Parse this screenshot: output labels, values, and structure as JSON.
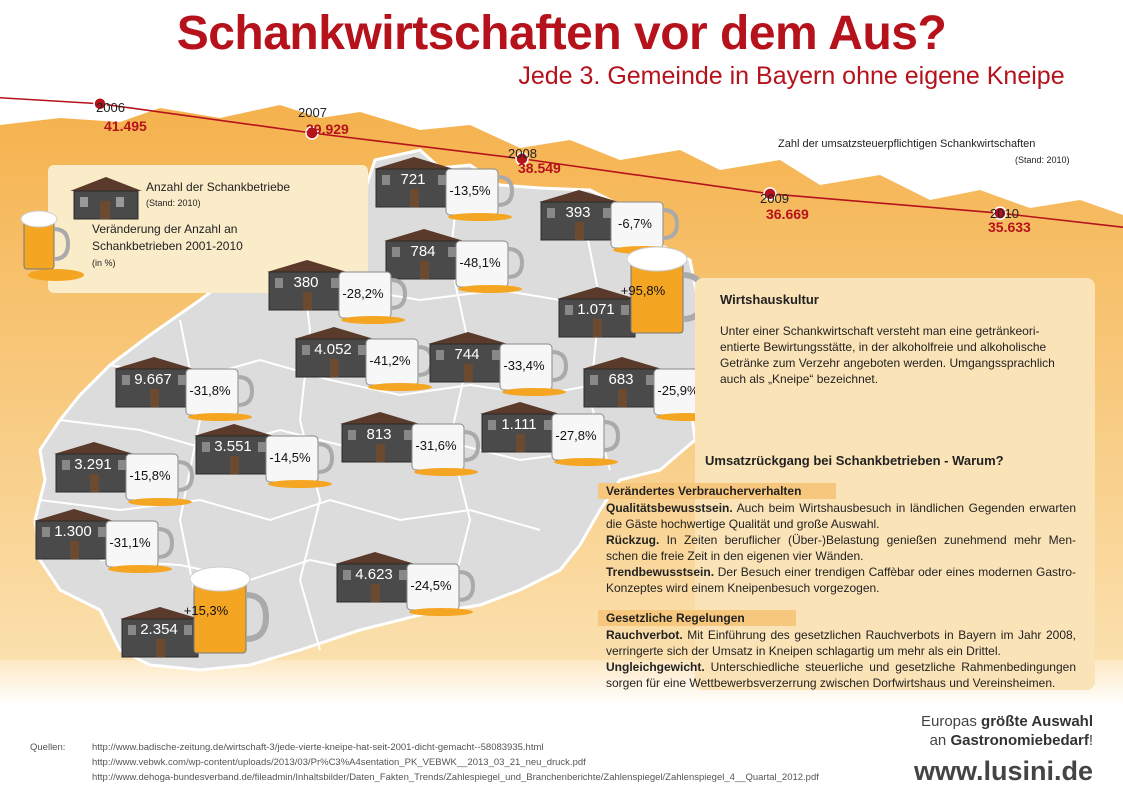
{
  "header": {
    "title": "Schankwirtschaften vor dem Aus?",
    "subtitle": "Jede 3. Gemeinde in Bayern ohne eigene Kneipe"
  },
  "chart_data": [
    {
      "type": "line",
      "x": [
        2006,
        2007,
        2008,
        2009,
        2010
      ],
      "values": [
        41495,
        39929,
        38549,
        36669,
        35633
      ],
      "value_labels": [
        "41.495",
        "39.929",
        "38.549",
        "36.669",
        "35.633"
      ],
      "note": "Zahl der umsatzsteuerpflichtigen Schankwirtschaften",
      "note_sub": "(Stand: 2010)",
      "color": "#b5121b"
    },
    {
      "type": "table",
      "columns": [
        "Anzahl der Schankbetriebe",
        "Veränderung der Anzahl an Schankbetrieben 2001-2010 (in %)"
      ],
      "rows": [
        [
          "721",
          "-13,5%"
        ],
        [
          "393",
          "-6,7%"
        ],
        [
          "784",
          "-48,1%"
        ],
        [
          "380",
          "-28,2%"
        ],
        [
          "1.071",
          "+95,8%"
        ],
        [
          "4.052",
          "-41,2%"
        ],
        [
          "744",
          "-33,4%"
        ],
        [
          "9.667",
          "-31,8%"
        ],
        [
          "683",
          "-25,9%"
        ],
        [
          "813",
          "-31,6%"
        ],
        [
          "1.111",
          "-27,8%"
        ],
        [
          "3.551",
          "-14,5%"
        ],
        [
          "3.291",
          "-15,8%"
        ],
        [
          "1.300",
          "-31,1%"
        ],
        [
          "4.623",
          "-24,5%"
        ],
        [
          "2.354",
          "+15,3%"
        ]
      ]
    }
  ],
  "legend": {
    "count_label": "Anzahl der Schankbetriebe",
    "count_sub": "(Stand: 2010)",
    "change_label_1": "Veränderung der Anzahl an",
    "change_label_2": "Schankbetrieben 2001-2010",
    "change_sub": "(in %)"
  },
  "panel": {
    "culture_title": "Wirtshauskultur",
    "culture_text": "Unter einer Schankwirtschaft versteht man eine getränkeori-entierte Bewirtungsstätte, in der alkoholfreie und alkoholische Getränke zum Verzehr angeboten werden. Umgangssprachlich auch als „Kneipe“ bezeichnet.",
    "why_title": "Umsatzrückgang bei Schankbetrieben - Warum?",
    "sec1_title": "Verändertes Verbraucherverhalten",
    "q_term": "Qualitätsbewusstsein.",
    "q_text": " Auch beim Wirtshausbesuch in ländlichen Gegenden erwarten die Gäste hochwertige Qualität und große Auswahl.",
    "r_term": "Rückzug.",
    "r_text": " In Zeiten beruflicher (Über-)Belastung genießen zunehmend mehr Men-schen die freie Zeit in den eigenen vier Wänden.",
    "t_term": "Trendbewusstsein.",
    "t_text": " Der Besuch einer trendigen Caffèbar oder eines modernen Gastro-Konzeptes wird einem Kneipenbesuch vorgezogen.",
    "sec2_title": "Gesetzliche Regelungen",
    "rv_term": "Rauchverbot.",
    "rv_text": " Mit Einführung des gesetzlichen Rauchverbots in Bayern im Jahr 2008, verringerte sich der Umsatz in Kneipen schlagartig um mehr als ein Drittel.",
    "ug_term": "Ungleichgewicht.",
    "ug_text": " Unterschiedliche steuerliche und gesetzliche Rahmenbedingungen sorgen für eine Wettbewerbsverzerrung zwischen Dorfwirtshaus und Vereinsheimen."
  },
  "sources": {
    "label": "Quellen:",
    "items": [
      "http://www.badische-zeitung.de/wirtschaft-3/jede-vierte-kneipe-hat-seit-2001-dicht-gemacht--58083935.html",
      "http://www.vebwk.com/wp-content/uploads/2013/03/Pr%C3%A4sentation_PK_VEBWK__2013_03_21_neu_druck.pdf",
      "http://www.dehoga-bundesverband.de/fileadmin/Inhaltsbilder/Daten_Fakten_Trends/Zahlespiegel_und_Branchenberichte/Zahlenspiegel/Zahlenspiegel_4__Quartal_2012.pdf"
    ]
  },
  "brand": {
    "line1_a": "Europas ",
    "line1_b": "größte Auswahl",
    "line2_a": "an ",
    "line2_b": "Gastronomiebedarf",
    "line2_c": "!",
    "url": "www.lusini.de"
  },
  "colors": {
    "accent": "#b5121b",
    "orange_band": "#f2b04e",
    "panel": "#fbe3b8",
    "map": "#dcdcdc"
  }
}
